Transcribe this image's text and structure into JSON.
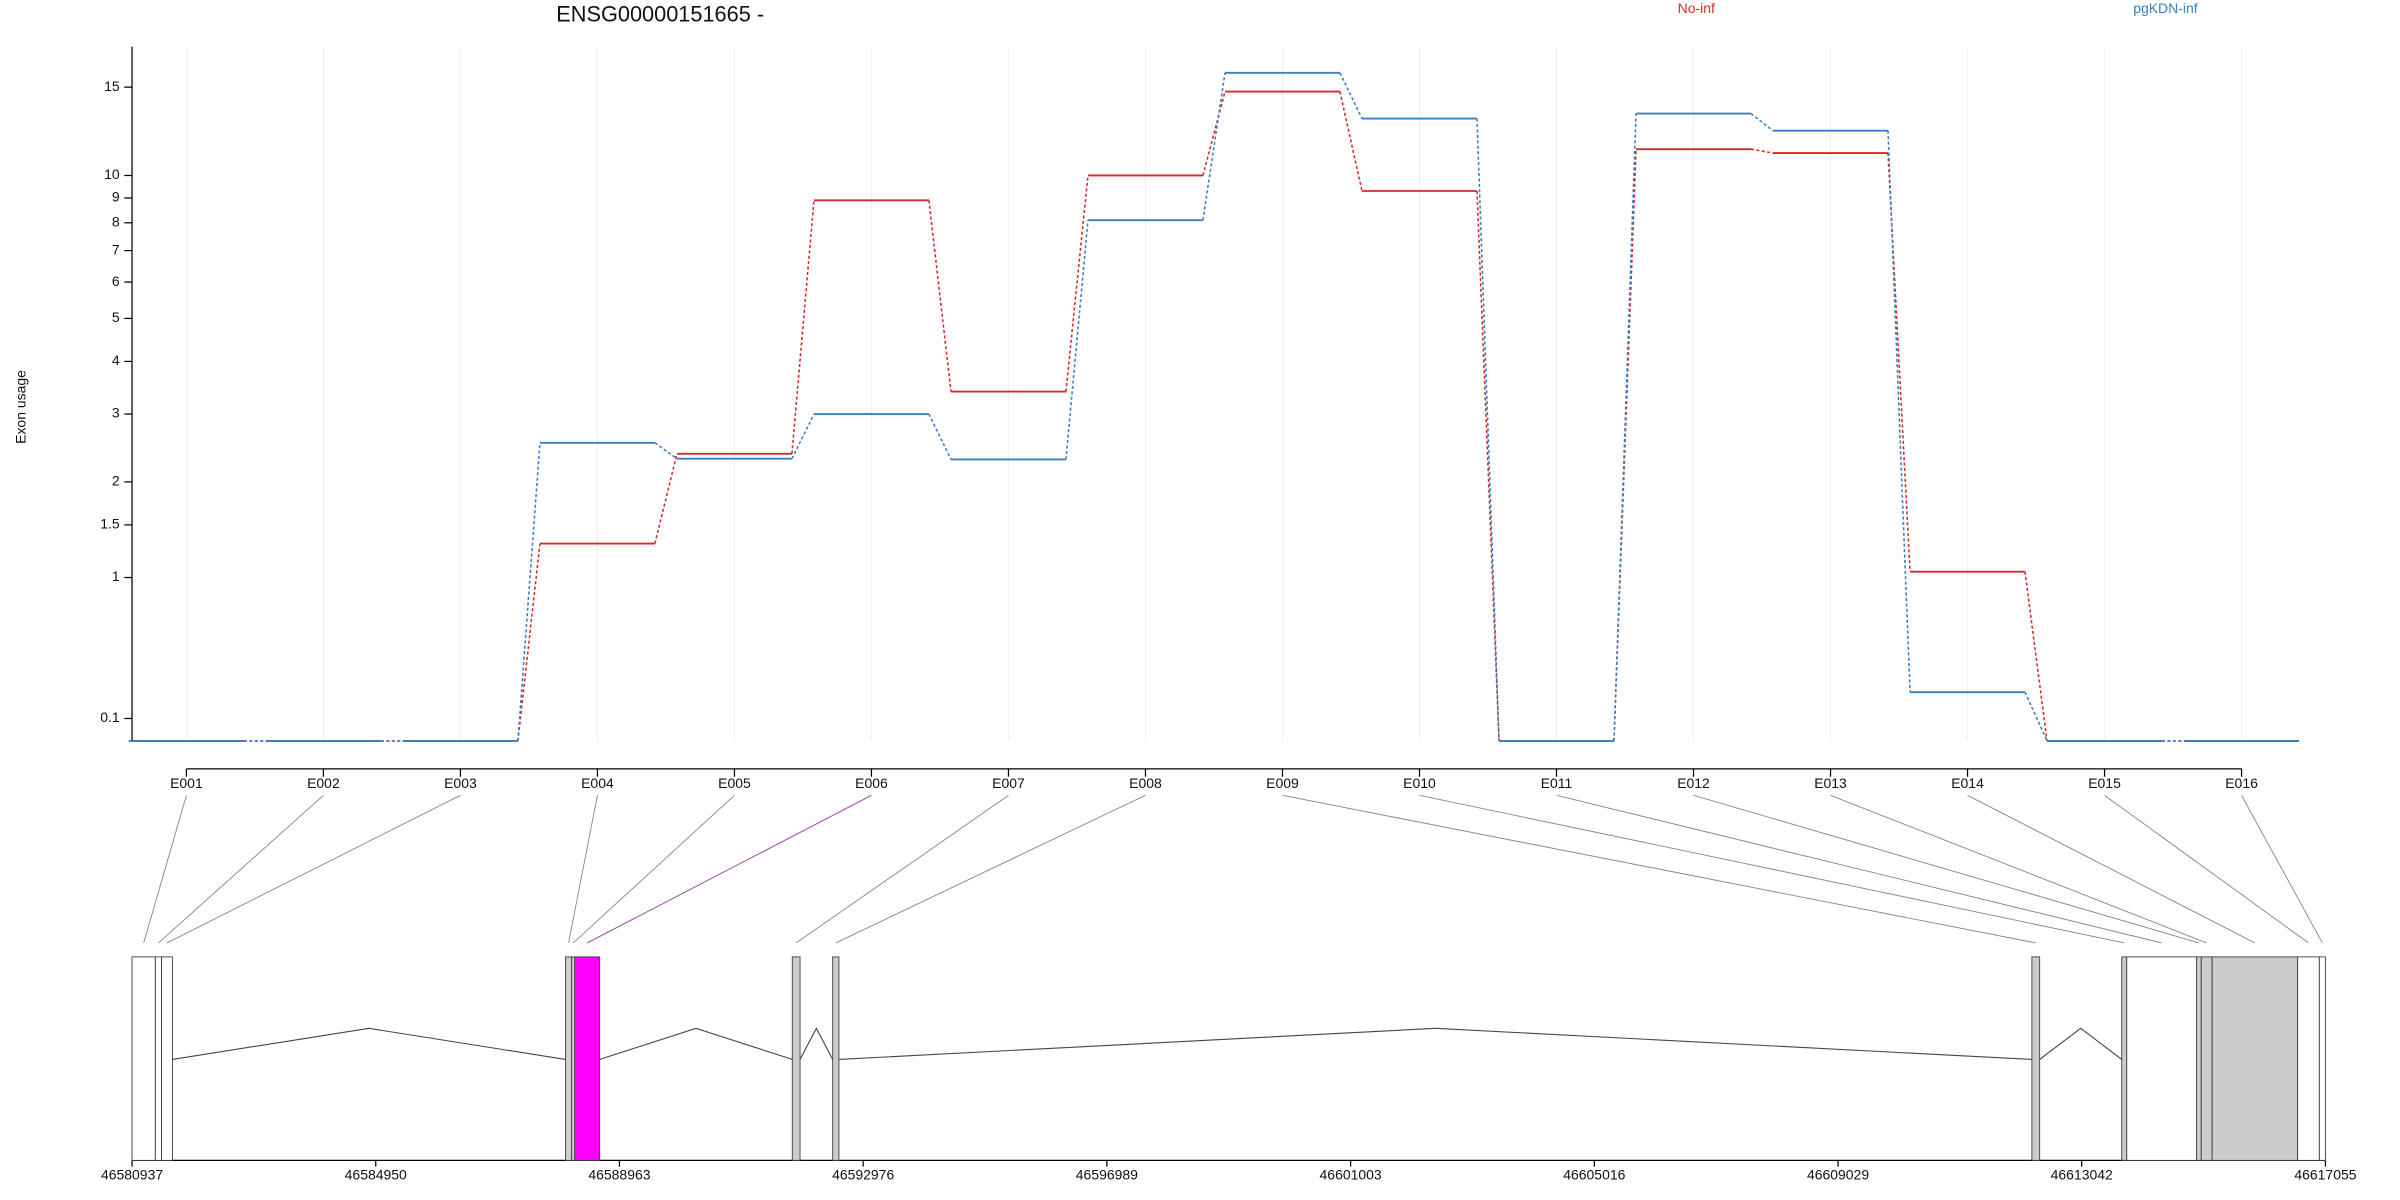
{
  "chart_data": {
    "type": "exon-step",
    "title": "ENSG00000151665 -",
    "y_label": "Exon usage",
    "yscale": "log10(x+1)",
    "ylim": [
      0,
      18
    ],
    "yticks": [
      0.1,
      1,
      1.5,
      2,
      3,
      4,
      5,
      6,
      7,
      8,
      9,
      10,
      15
    ],
    "grid": true,
    "categories": [
      "E001",
      "E002",
      "E003",
      "E004",
      "E005",
      "E006",
      "E007",
      "E008",
      "E009",
      "E010",
      "E011",
      "E012",
      "E013",
      "E014",
      "E015",
      "E016"
    ],
    "series": [
      {
        "name": "No-inf",
        "color": "#d62a2a",
        "values": [
          0,
          0,
          0,
          1.31,
          2.38,
          8.9,
          3.4,
          10.0,
          14.7,
          9.3,
          0,
          11.3,
          11.1,
          1.05,
          0,
          0
        ]
      },
      {
        "name": "pgKDN-inf",
        "color": "#3a7fc1",
        "values": [
          0,
          0,
          0,
          2.54,
          2.31,
          3.0,
          2.3,
          8.1,
          16.0,
          13.0,
          0,
          13.3,
          12.3,
          0.23,
          0,
          0
        ]
      }
    ],
    "gene_model": {
      "xlim": [
        46580937,
        46617055
      ],
      "xticks": [
        46580937,
        46584950,
        46588963,
        46592976,
        46596989,
        46601003,
        46605016,
        46609029,
        46613042,
        46617055
      ],
      "exons": [
        {
          "start": 46580937,
          "end": 46581321,
          "color": "#ffffff"
        },
        {
          "start": 46581321,
          "end": 46581423,
          "color": "#ffffff"
        },
        {
          "start": 46581423,
          "end": 46581602,
          "color": "#ffffff"
        },
        {
          "start": 46588074,
          "end": 46588176,
          "color": "#cccccc"
        },
        {
          "start": 46588176,
          "end": 46588227,
          "color": "#cccccc"
        },
        {
          "start": 46588227,
          "end": 46588637,
          "color": "#ff00ff"
        },
        {
          "start": 46591809,
          "end": 46591937,
          "color": "#cccccc"
        },
        {
          "start": 46592474,
          "end": 46592577,
          "color": "#cccccc"
        },
        {
          "start": 46612221,
          "end": 46612349,
          "color": "#cccccc"
        },
        {
          "start": 46613701,
          "end": 46613783,
          "color": "#cccccc"
        },
        {
          "start": 46613783,
          "end": 46614934,
          "color": "#ffffff"
        },
        {
          "start": 46614934,
          "end": 46615010,
          "color": "#cccccc"
        },
        {
          "start": 46615010,
          "end": 46615190,
          "color": "#cccccc"
        },
        {
          "start": 46615190,
          "end": 46616597,
          "color": "#cccccc"
        },
        {
          "start": 46616597,
          "end": 46616955,
          "color": "#ffffff"
        },
        {
          "start": 46616955,
          "end": 46617055,
          "color": "#ffffff"
        }
      ]
    }
  }
}
